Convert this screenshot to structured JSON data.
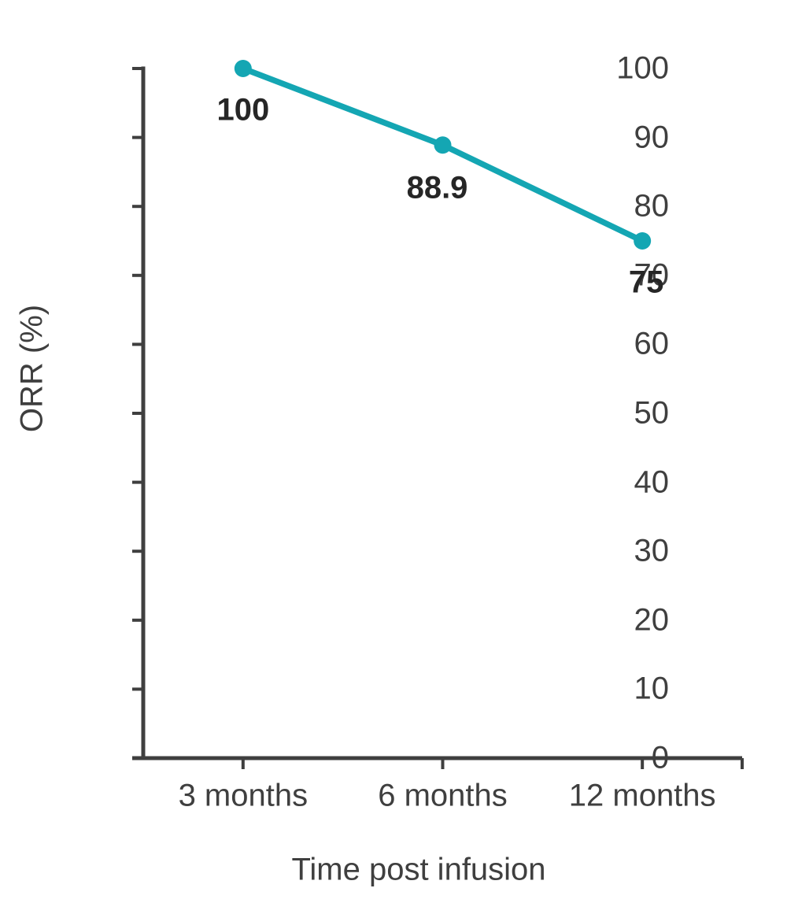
{
  "chart_data": {
    "type": "line",
    "categories": [
      "3 months",
      "6 months",
      "12 months"
    ],
    "series": [
      {
        "name": "ORR",
        "values": [
          100,
          88.9,
          75
        ],
        "color": "#14a6b3",
        "marker": "circle"
      }
    ],
    "data_labels": [
      "100",
      "88.9",
      "75"
    ],
    "title": "",
    "xlabel": "Time post infusion",
    "ylabel": "ORR (%)",
    "ylim": [
      0,
      100
    ],
    "yticks": [
      0,
      10,
      20,
      30,
      40,
      50,
      60,
      70,
      80,
      90,
      100
    ],
    "grid": false,
    "legend": "none"
  },
  "colors": {
    "series": "#14a6b3",
    "axis": "#3f3f3f",
    "tick_text": "#3f3f3f",
    "data_label": "#262626",
    "background": "#ffffff"
  }
}
